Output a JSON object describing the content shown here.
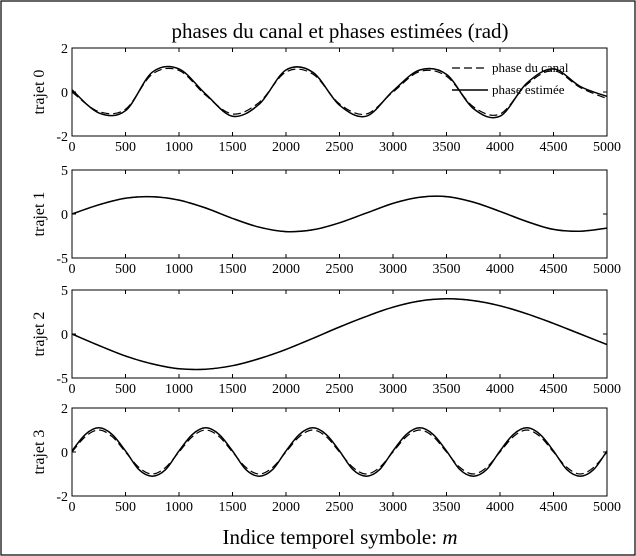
{
  "chart_data": {
    "type": "line",
    "title": "phases du canal et phases estimées (rad)",
    "xlabel": "Indice temporel symbole: ",
    "xlabel_var": "m",
    "x_ticks": [
      "0",
      "500",
      "1000",
      "1500",
      "2000",
      "2500",
      "3000",
      "3500",
      "4000",
      "4500",
      "5000"
    ],
    "xlim": [
      0,
      5000
    ],
    "legend": {
      "position": "top-right",
      "entries": [
        "phase du canal",
        "phase estimée"
      ]
    },
    "colors": {
      "series": "#000000",
      "background": "#ffffff"
    },
    "subplots": [
      {
        "ylabel": "trajet 0",
        "ylim": [
          -2,
          2
        ],
        "y_ticks": [
          "2",
          "0",
          "-2"
        ],
        "show_legend": true,
        "series": [
          {
            "name": "phase du canal",
            "style": "dashed",
            "x": [
              0,
              250,
              500,
              750,
              1000,
              1250,
              1500,
              1750,
              2000,
              2250,
              2500,
              2750,
              3000,
              3250,
              3500,
              3750,
              4000,
              4250,
              4500,
              4750,
              5000
            ],
            "y": [
              0.0,
              -0.89,
              -0.78,
              0.81,
              0.98,
              -0.15,
              -1.0,
              -0.47,
              0.91,
              0.82,
              -0.54,
              -1.0,
              0.0,
              0.93,
              0.72,
              -0.67,
              -1.0,
              0.34,
              0.97,
              0.2,
              -0.3
            ]
          },
          {
            "name": "phase estimée",
            "style": "solid",
            "x": [
              0,
              250,
              500,
              750,
              1000,
              1250,
              1500,
              1750,
              2000,
              2250,
              2500,
              2750,
              3000,
              3250,
              3500,
              3750,
              4000,
              4250,
              4500,
              4750,
              5000
            ],
            "y": [
              0.1,
              -0.95,
              -0.85,
              0.9,
              1.05,
              -0.1,
              -1.1,
              -0.55,
              1.0,
              0.9,
              -0.6,
              -1.1,
              0.05,
              1.0,
              0.8,
              -0.75,
              -1.1,
              0.4,
              1.05,
              0.25,
              -0.2
            ]
          }
        ]
      },
      {
        "ylabel": "trajet 1",
        "ylim": [
          -5,
          5
        ],
        "y_ticks": [
          "5",
          "0",
          "-5"
        ],
        "show_legend": false,
        "series": [
          {
            "name": "phase du canal",
            "style": "dashed",
            "x": [
              0,
              250,
              500,
              750,
              1000,
              1250,
              1500,
              1750,
              2000,
              2250,
              2500,
              2750,
              3000,
              3250,
              3500,
              3750,
              4000,
              4250,
              4500,
              4750,
              5000
            ],
            "y": [
              0.0,
              1.05,
              1.8,
              1.97,
              1.58,
              0.68,
              -0.5,
              -1.5,
              -2.0,
              -1.8,
              -1.0,
              0.1,
              1.2,
              1.9,
              1.98,
              1.35,
              0.3,
              -0.85,
              -1.75,
              -1.95,
              -1.6
            ]
          },
          {
            "name": "phase estimée",
            "style": "solid",
            "x": [
              0,
              250,
              500,
              750,
              1000,
              1250,
              1500,
              1750,
              2000,
              2250,
              2500,
              2750,
              3000,
              3250,
              3500,
              3750,
              4000,
              4250,
              4500,
              4750,
              5000
            ],
            "y": [
              0.0,
              1.05,
              1.8,
              1.97,
              1.58,
              0.68,
              -0.5,
              -1.5,
              -2.0,
              -1.8,
              -1.0,
              0.1,
              1.2,
              1.9,
              1.98,
              1.35,
              0.3,
              -0.85,
              -1.75,
              -1.95,
              -1.6
            ]
          }
        ]
      },
      {
        "ylabel": "trajet 2",
        "ylim": [
          -5,
          5
        ],
        "y_ticks": [
          "5",
          "0",
          "-5"
        ],
        "show_legend": false,
        "series": [
          {
            "name": "phase du canal",
            "style": "dashed",
            "x": [
              0,
              250,
              500,
              750,
              1000,
              1250,
              1500,
              1750,
              2000,
              2250,
              2500,
              2750,
              3000,
              3250,
              3500,
              3750,
              4000,
              4250,
              4500,
              4750,
              5000
            ],
            "y": [
              0.0,
              -1.3,
              -2.5,
              -3.4,
              -3.95,
              -4.0,
              -3.6,
              -2.8,
              -1.75,
              -0.5,
              0.8,
              2.0,
              3.05,
              3.75,
              4.0,
              3.8,
              3.2,
              2.3,
              1.2,
              0.0,
              -1.2
            ]
          },
          {
            "name": "phase estimée",
            "style": "solid",
            "x": [
              0,
              250,
              500,
              750,
              1000,
              1250,
              1500,
              1750,
              2000,
              2250,
              2500,
              2750,
              3000,
              3250,
              3500,
              3750,
              4000,
              4250,
              4500,
              4750,
              5000
            ],
            "y": [
              0.0,
              -1.3,
              -2.5,
              -3.4,
              -3.95,
              -4.0,
              -3.6,
              -2.8,
              -1.75,
              -0.5,
              0.8,
              2.0,
              3.05,
              3.75,
              4.0,
              3.8,
              3.2,
              2.3,
              1.2,
              0.0,
              -1.2
            ]
          }
        ]
      },
      {
        "ylabel": "trajet 3",
        "ylim": [
          -2,
          2
        ],
        "y_ticks": [
          "2",
          "0",
          "-2"
        ],
        "show_legend": false,
        "series": [
          {
            "name": "phase du canal",
            "style": "dashed",
            "x": [
              0,
              125,
              250,
              375,
              500,
              625,
              750,
              875,
              1000,
              1125,
              1250,
              1375,
              1500,
              1625,
              1750,
              1875,
              2000,
              2125,
              2250,
              2375,
              2500,
              2625,
              2750,
              2875,
              3000,
              3125,
              3250,
              3375,
              3500,
              3625,
              3750,
              3875,
              4000,
              4125,
              4250,
              4375,
              4500,
              4625,
              4750,
              4875,
              5000
            ],
            "y": [
              0.0,
              0.7,
              1.0,
              0.7,
              0.0,
              -0.7,
              -1.0,
              -0.7,
              0.0,
              0.7,
              1.0,
              0.7,
              0.0,
              -0.7,
              -1.0,
              -0.7,
              0.0,
              0.7,
              1.0,
              0.7,
              0.0,
              -0.7,
              -1.0,
              -0.7,
              0.0,
              0.7,
              1.0,
              0.7,
              0.0,
              -0.7,
              -1.0,
              -0.7,
              0.0,
              0.7,
              1.0,
              0.7,
              0.0,
              -0.7,
              -1.0,
              -0.7,
              0.0
            ]
          },
          {
            "name": "phase estimée",
            "style": "solid",
            "x": [
              0,
              125,
              250,
              375,
              500,
              625,
              750,
              875,
              1000,
              1125,
              1250,
              1375,
              1500,
              1625,
              1750,
              1875,
              2000,
              2125,
              2250,
              2375,
              2500,
              2625,
              2750,
              2875,
              3000,
              3125,
              3250,
              3375,
              3500,
              3625,
              3750,
              3875,
              4000,
              4125,
              4250,
              4375,
              4500,
              4625,
              4750,
              4875,
              5000
            ],
            "y": [
              0.05,
              0.8,
              1.1,
              0.8,
              0.05,
              -0.8,
              -1.1,
              -0.8,
              0.05,
              0.8,
              1.1,
              0.8,
              0.05,
              -0.8,
              -1.1,
              -0.8,
              0.05,
              0.8,
              1.1,
              0.8,
              0.05,
              -0.8,
              -1.1,
              -0.8,
              0.05,
              0.8,
              1.1,
              0.8,
              0.05,
              -0.8,
              -1.1,
              -0.8,
              0.05,
              0.8,
              1.1,
              0.8,
              0.05,
              -0.8,
              -1.1,
              -0.8,
              0.05
            ]
          }
        ]
      }
    ]
  }
}
